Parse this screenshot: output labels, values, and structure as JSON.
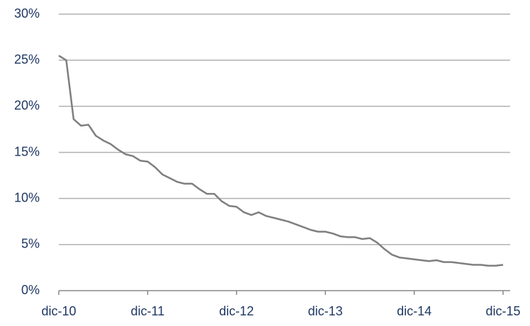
{
  "chart_data": {
    "type": "line",
    "categories": [
      "dic-10",
      null,
      null,
      null,
      null,
      null,
      null,
      null,
      null,
      null,
      null,
      null,
      "dic-11",
      null,
      null,
      null,
      null,
      null,
      null,
      null,
      null,
      null,
      null,
      null,
      "dic-12",
      null,
      null,
      null,
      null,
      null,
      null,
      null,
      null,
      null,
      null,
      null,
      "dic-13",
      null,
      null,
      null,
      null,
      null,
      null,
      null,
      null,
      null,
      null,
      null,
      "dic-14",
      null,
      null,
      null,
      null,
      null,
      null,
      null,
      null,
      null,
      null,
      null,
      "dic-15"
    ],
    "values": [
      25.5,
      25.0,
      18.6,
      17.9,
      18.0,
      16.8,
      16.3,
      15.9,
      15.3,
      14.8,
      14.6,
      14.1,
      14.0,
      13.4,
      12.6,
      12.2,
      11.8,
      11.6,
      11.6,
      11.0,
      10.5,
      10.5,
      9.7,
      9.2,
      9.1,
      8.5,
      8.2,
      8.5,
      8.1,
      7.9,
      7.7,
      7.5,
      7.2,
      6.9,
      6.6,
      6.4,
      6.4,
      6.2,
      5.9,
      5.8,
      5.8,
      5.6,
      5.7,
      5.2,
      4.5,
      3.9,
      3.6,
      3.5,
      3.4,
      3.3,
      3.2,
      3.3,
      3.1,
      3.1,
      3.0,
      2.9,
      2.8,
      2.8,
      2.7,
      2.7,
      2.8
    ],
    "color": "#7f7f7f",
    "ylim": [
      0,
      30
    ],
    "yticks": [
      {
        "value": 0,
        "label": "0%"
      },
      {
        "value": 5,
        "label": "5%"
      },
      {
        "value": 10,
        "label": "10%"
      },
      {
        "value": 15,
        "label": "15%"
      },
      {
        "value": 20,
        "label": "20%"
      },
      {
        "value": 25,
        "label": "25%"
      },
      {
        "value": 30,
        "label": "30%"
      }
    ],
    "grid": true
  }
}
